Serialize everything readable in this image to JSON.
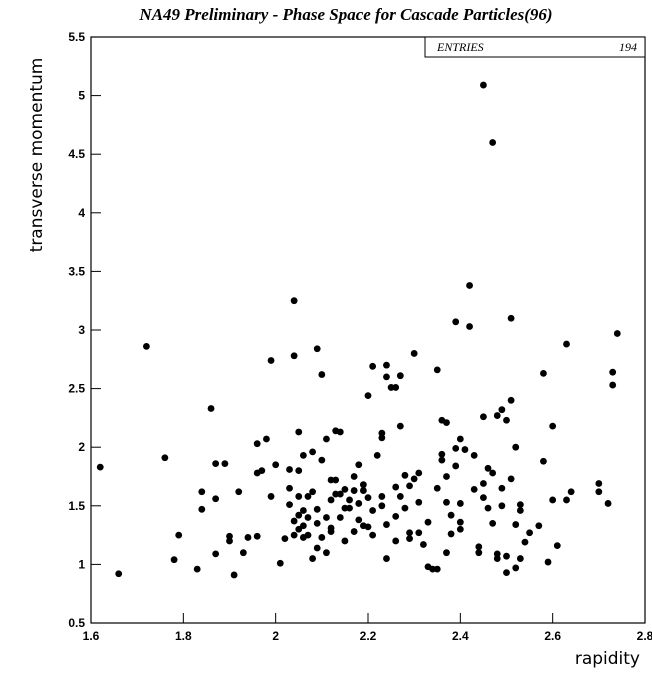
{
  "chart_data": {
    "type": "scatter",
    "title": "NA49 Preliminary - Phase Space for Cascade Particles(96)",
    "x_label": "rapidity",
    "y_label": "transverse momentum",
    "stats": {
      "label": "ENTRIES",
      "entries": 194
    },
    "color": "#000000",
    "xlim": [
      1.6,
      2.8
    ],
    "ylim": [
      0.5,
      5.5
    ],
    "xticks": [
      1.6,
      1.8,
      2,
      2.2,
      2.4,
      2.6,
      2.8
    ],
    "yticks": [
      0.5,
      1,
      1.5,
      2,
      2.5,
      3,
      3.5,
      4,
      4.5,
      5,
      5.5
    ],
    "x": [
      1.62,
      1.66,
      1.72,
      1.76,
      1.78,
      1.79,
      1.83,
      1.84,
      1.84,
      1.86,
      1.87,
      1.87,
      1.87,
      1.89,
      1.9,
      1.9,
      1.91,
      1.92,
      1.93,
      1.94,
      1.96,
      1.96,
      1.96,
      1.97,
      1.98,
      1.99,
      1.99,
      2.0,
      2.01,
      2.02,
      2.03,
      2.03,
      2.03,
      2.04,
      2.04,
      2.04,
      2.04,
      2.05,
      2.05,
      2.05,
      2.05,
      2.05,
      2.06,
      2.06,
      2.06,
      2.06,
      2.07,
      2.07,
      2.07,
      2.08,
      2.08,
      2.08,
      2.09,
      2.09,
      2.09,
      2.09,
      2.1,
      2.1,
      2.1,
      2.11,
      2.11,
      2.11,
      2.12,
      2.12,
      2.12,
      2.13,
      2.13,
      2.13,
      2.14,
      2.14,
      2.15,
      2.15,
      2.15,
      2.16,
      2.16,
      2.17,
      2.17,
      2.17,
      2.18,
      2.18,
      2.18,
      2.19,
      2.19,
      2.19,
      2.2,
      2.2,
      2.2,
      2.21,
      2.21,
      2.21,
      2.22,
      2.23,
      2.23,
      2.23,
      2.23,
      2.24,
      2.24,
      2.24,
      2.24,
      2.25,
      2.26,
      2.26,
      2.26,
      2.27,
      2.27,
      2.28,
      2.28,
      2.29,
      2.29,
      2.29,
      2.3,
      2.3,
      2.31,
      2.31,
      2.32,
      2.33,
      2.33,
      2.34,
      2.35,
      2.35,
      2.35,
      2.36,
      2.36,
      2.36,
      2.37,
      2.37,
      2.37,
      2.37,
      2.38,
      2.39,
      2.39,
      2.39,
      2.4,
      2.4,
      2.4,
      2.4,
      2.41,
      2.42,
      2.42,
      2.43,
      2.43,
      2.44,
      2.44,
      2.45,
      2.45,
      2.45,
      2.45,
      2.46,
      2.46,
      2.47,
      2.47,
      2.47,
      2.48,
      2.48,
      2.48,
      2.49,
      2.49,
      2.49,
      2.5,
      2.5,
      2.5,
      2.51,
      2.51,
      2.51,
      2.52,
      2.52,
      2.52,
      2.53,
      2.53,
      2.53,
      2.54,
      2.55,
      2.57,
      2.58,
      2.58,
      2.59,
      2.6,
      2.6,
      2.61,
      2.63,
      2.63,
      2.64,
      2.7,
      2.7,
      2.72,
      2.73,
      2.73,
      2.74,
      2.14,
      2.26,
      2.38,
      2.12,
      2.31,
      2.27
    ],
    "y": [
      1.83,
      0.92,
      2.86,
      1.91,
      1.04,
      1.25,
      0.96,
      1.47,
      1.62,
      2.33,
      1.86,
      1.56,
      1.09,
      1.86,
      1.24,
      1.2,
      0.91,
      1.62,
      1.1,
      1.23,
      1.24,
      1.78,
      2.03,
      1.8,
      2.07,
      1.58,
      2.74,
      1.85,
      1.01,
      1.22,
      1.65,
      1.81,
      1.51,
      3.25,
      2.78,
      1.37,
      1.25,
      1.42,
      1.3,
      2.13,
      1.8,
      1.58,
      1.46,
      1.33,
      1.23,
      1.93,
      1.58,
      1.4,
      1.25,
      1.05,
      1.62,
      1.96,
      1.35,
      1.14,
      1.47,
      2.84,
      2.62,
      1.89,
      1.23,
      1.1,
      1.4,
      2.07,
      1.72,
      1.55,
      1.28,
      2.14,
      1.6,
      1.72,
      2.13,
      1.4,
      1.48,
      1.64,
      1.2,
      1.55,
      1.48,
      1.63,
      1.75,
      1.28,
      1.52,
      1.38,
      1.85,
      1.33,
      1.68,
      1.63,
      2.44,
      1.57,
      1.32,
      2.69,
      1.25,
      1.46,
      1.93,
      2.08,
      2.12,
      1.58,
      1.5,
      2.7,
      2.6,
      1.34,
      1.05,
      2.51,
      2.51,
      1.66,
      1.2,
      2.18,
      2.61,
      1.76,
      1.48,
      1.27,
      1.22,
      1.67,
      2.8,
      1.73,
      1.53,
      1.78,
      1.17,
      0.98,
      1.36,
      0.96,
      1.65,
      0.96,
      2.66,
      2.23,
      1.94,
      1.89,
      2.21,
      1.75,
      1.53,
      1.1,
      1.26,
      1.99,
      3.07,
      1.84,
      2.07,
      1.52,
      1.36,
      1.3,
      1.98,
      3.03,
      3.38,
      1.93,
      1.64,
      1.15,
      1.1,
      5.09,
      1.69,
      2.26,
      1.57,
      1.48,
      1.82,
      4.6,
      1.35,
      1.78,
      2.27,
      1.09,
      1.05,
      2.32,
      1.65,
      1.5,
      0.93,
      2.23,
      1.07,
      3.1,
      2.4,
      1.73,
      0.97,
      2.0,
      1.34,
      1.51,
      1.46,
      1.05,
      1.19,
      1.27,
      1.33,
      1.88,
      2.63,
      1.02,
      1.55,
      2.18,
      1.16,
      2.88,
      1.55,
      1.62,
      1.62,
      1.69,
      1.52,
      2.64,
      2.53,
      2.97,
      1.6,
      1.41,
      1.42,
      1.31,
      1.27,
      1.58
    ]
  }
}
